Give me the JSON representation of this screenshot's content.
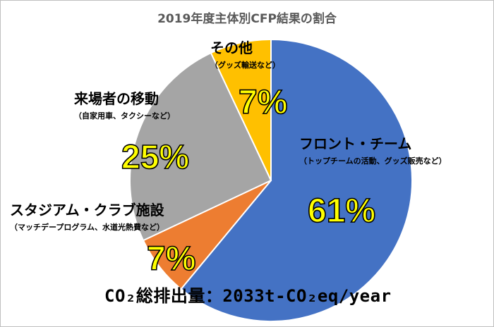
{
  "chart_data": {
    "type": "pie",
    "title": "2019年度主体別CFP結果の割合",
    "slices": [
      {
        "name": "フロント・チーム",
        "note": "（トップチームの活動、グッズ販売など）",
        "value": 61,
        "label": "61%",
        "color": "#4472c4"
      },
      {
        "name": "スタジアム・クラブ施設",
        "note": "（マッチデープログラム、水道光熱費など）",
        "value": 7,
        "label": "7%",
        "color": "#ed7d31"
      },
      {
        "name": "来場者の移動",
        "note": "（自家用車、タクシーなど）",
        "value": 25,
        "label": "25%",
        "color": "#a5a5a5"
      },
      {
        "name": "その他",
        "note": "（グッズ輸送など）",
        "value": 7,
        "label": "7%",
        "color": "#ffc000"
      }
    ],
    "total_label": "CO₂総排出量：2033t-CO₂eq/year"
  }
}
